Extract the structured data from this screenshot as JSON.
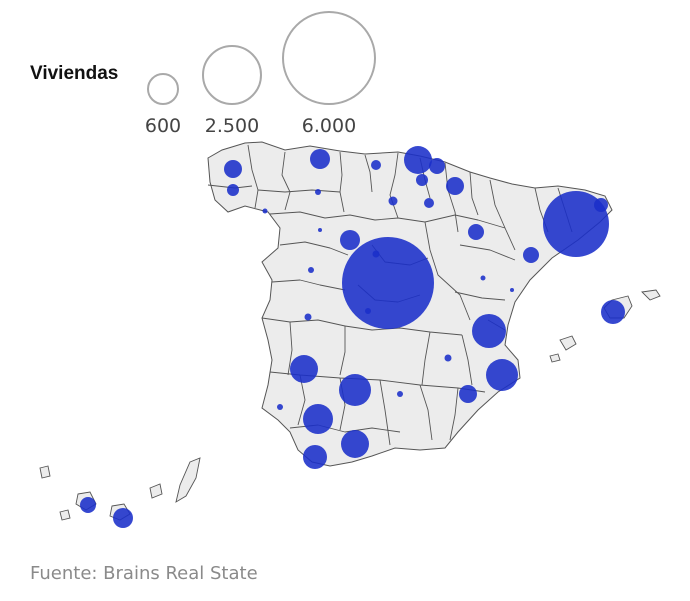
{
  "legend": {
    "title": "Viviendas",
    "items": [
      {
        "label": "600",
        "value": 600
      },
      {
        "label": "2.500",
        "value": 2500
      },
      {
        "label": "6.000",
        "value": 6000
      }
    ]
  },
  "source": "Fuente: Brains Real State",
  "colors": {
    "bubble": "#1a2fc9",
    "land": "#ececec",
    "border": "#555555",
    "legend_circle": "#a9a9a9"
  }
}
